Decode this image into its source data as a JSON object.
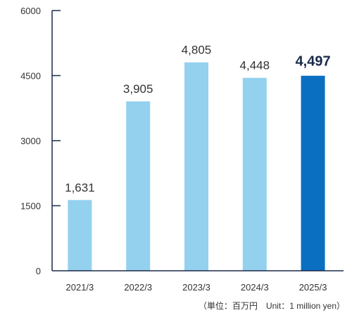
{
  "chart_data": {
    "type": "bar",
    "categories": [
      "2021/3",
      "2022/3",
      "2023/3",
      "2024/3",
      "2025/3"
    ],
    "values": [
      1631,
      3905,
      4805,
      4448,
      4497
    ],
    "data_labels": [
      "1,631",
      "3,905",
      "4,805",
      "4,448",
      "4,497"
    ],
    "y_ticks": [
      "0",
      "1500",
      "3000",
      "4500",
      "6000"
    ],
    "ylim": [
      0,
      6000
    ],
    "highlight_index": 4,
    "grid": false,
    "legend": "none",
    "colors": {
      "bar": "#93d1ee",
      "highlight": "#0b6fc1",
      "axis": "#1a2a4a"
    }
  },
  "unit_note": "（単位：百万円　Unit：1 million yen）"
}
